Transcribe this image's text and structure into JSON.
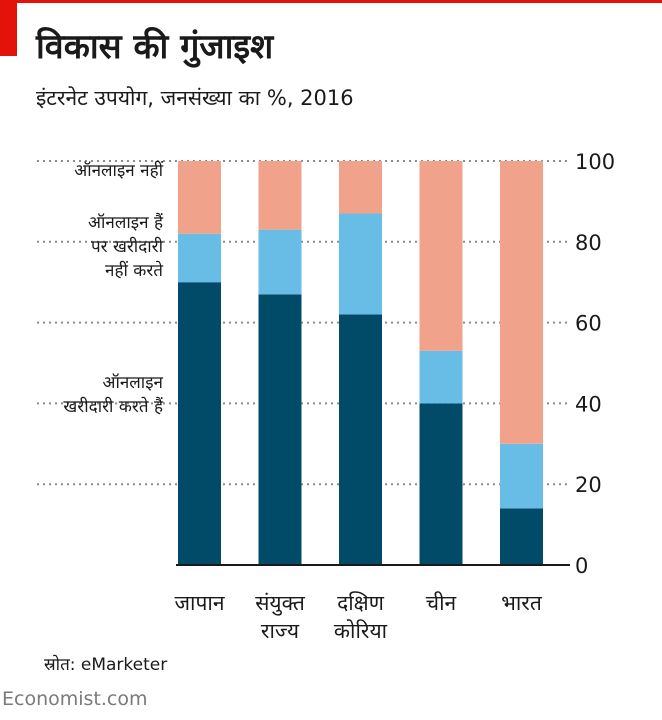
{
  "header": {
    "title": "विकास की गुंजाइश",
    "subtitle": "इंटरनेट उपयोग, जनसंख्या का %, 2016"
  },
  "footer": {
    "source": "स्रोत: eMarketer",
    "brand": "Economist.com"
  },
  "colors": {
    "accent": "#e3120b",
    "shopping": "#024b68",
    "online_no_shopping": "#67bde6",
    "not_online": "#f0a28a",
    "grid": "#8c8c8c"
  },
  "chart_data": {
    "type": "bar",
    "stacked": true,
    "categories": [
      [
        "जापान"
      ],
      [
        "संयुक्त",
        "राज्य"
      ],
      [
        "दक्षिण",
        "कोरिया"
      ],
      [
        "चीन"
      ],
      [
        "भारत"
      ]
    ],
    "series": [
      {
        "name": "ऑनलाइन खरीदारी करते हैं",
        "label_lines": [
          "ऑनलाइन",
          "खरीदारी करते हैं"
        ],
        "color": "#024b68",
        "values": [
          70,
          67,
          62,
          40,
          14
        ]
      },
      {
        "name": "ऑनलाइन हैं पर खरीदारी नहीं करते",
        "label_lines": [
          "ऑनलाइन हैं",
          "पर खरीदारी",
          "नहीं करते"
        ],
        "color": "#67bde6",
        "values": [
          12,
          16,
          25,
          13,
          16
        ]
      },
      {
        "name": "ऑनलाइन नहीं",
        "label_lines": [
          "ऑनलाइन नहीं"
        ],
        "color": "#f0a28a",
        "values": [
          18,
          17,
          13,
          47,
          70
        ]
      }
    ],
    "y_ticks": [
      "0",
      "20",
      "40",
      "60",
      "80",
      "100"
    ],
    "ylim": [
      0,
      100
    ],
    "grid": true,
    "legend": "left, inline labels",
    "axis_side": "right"
  }
}
